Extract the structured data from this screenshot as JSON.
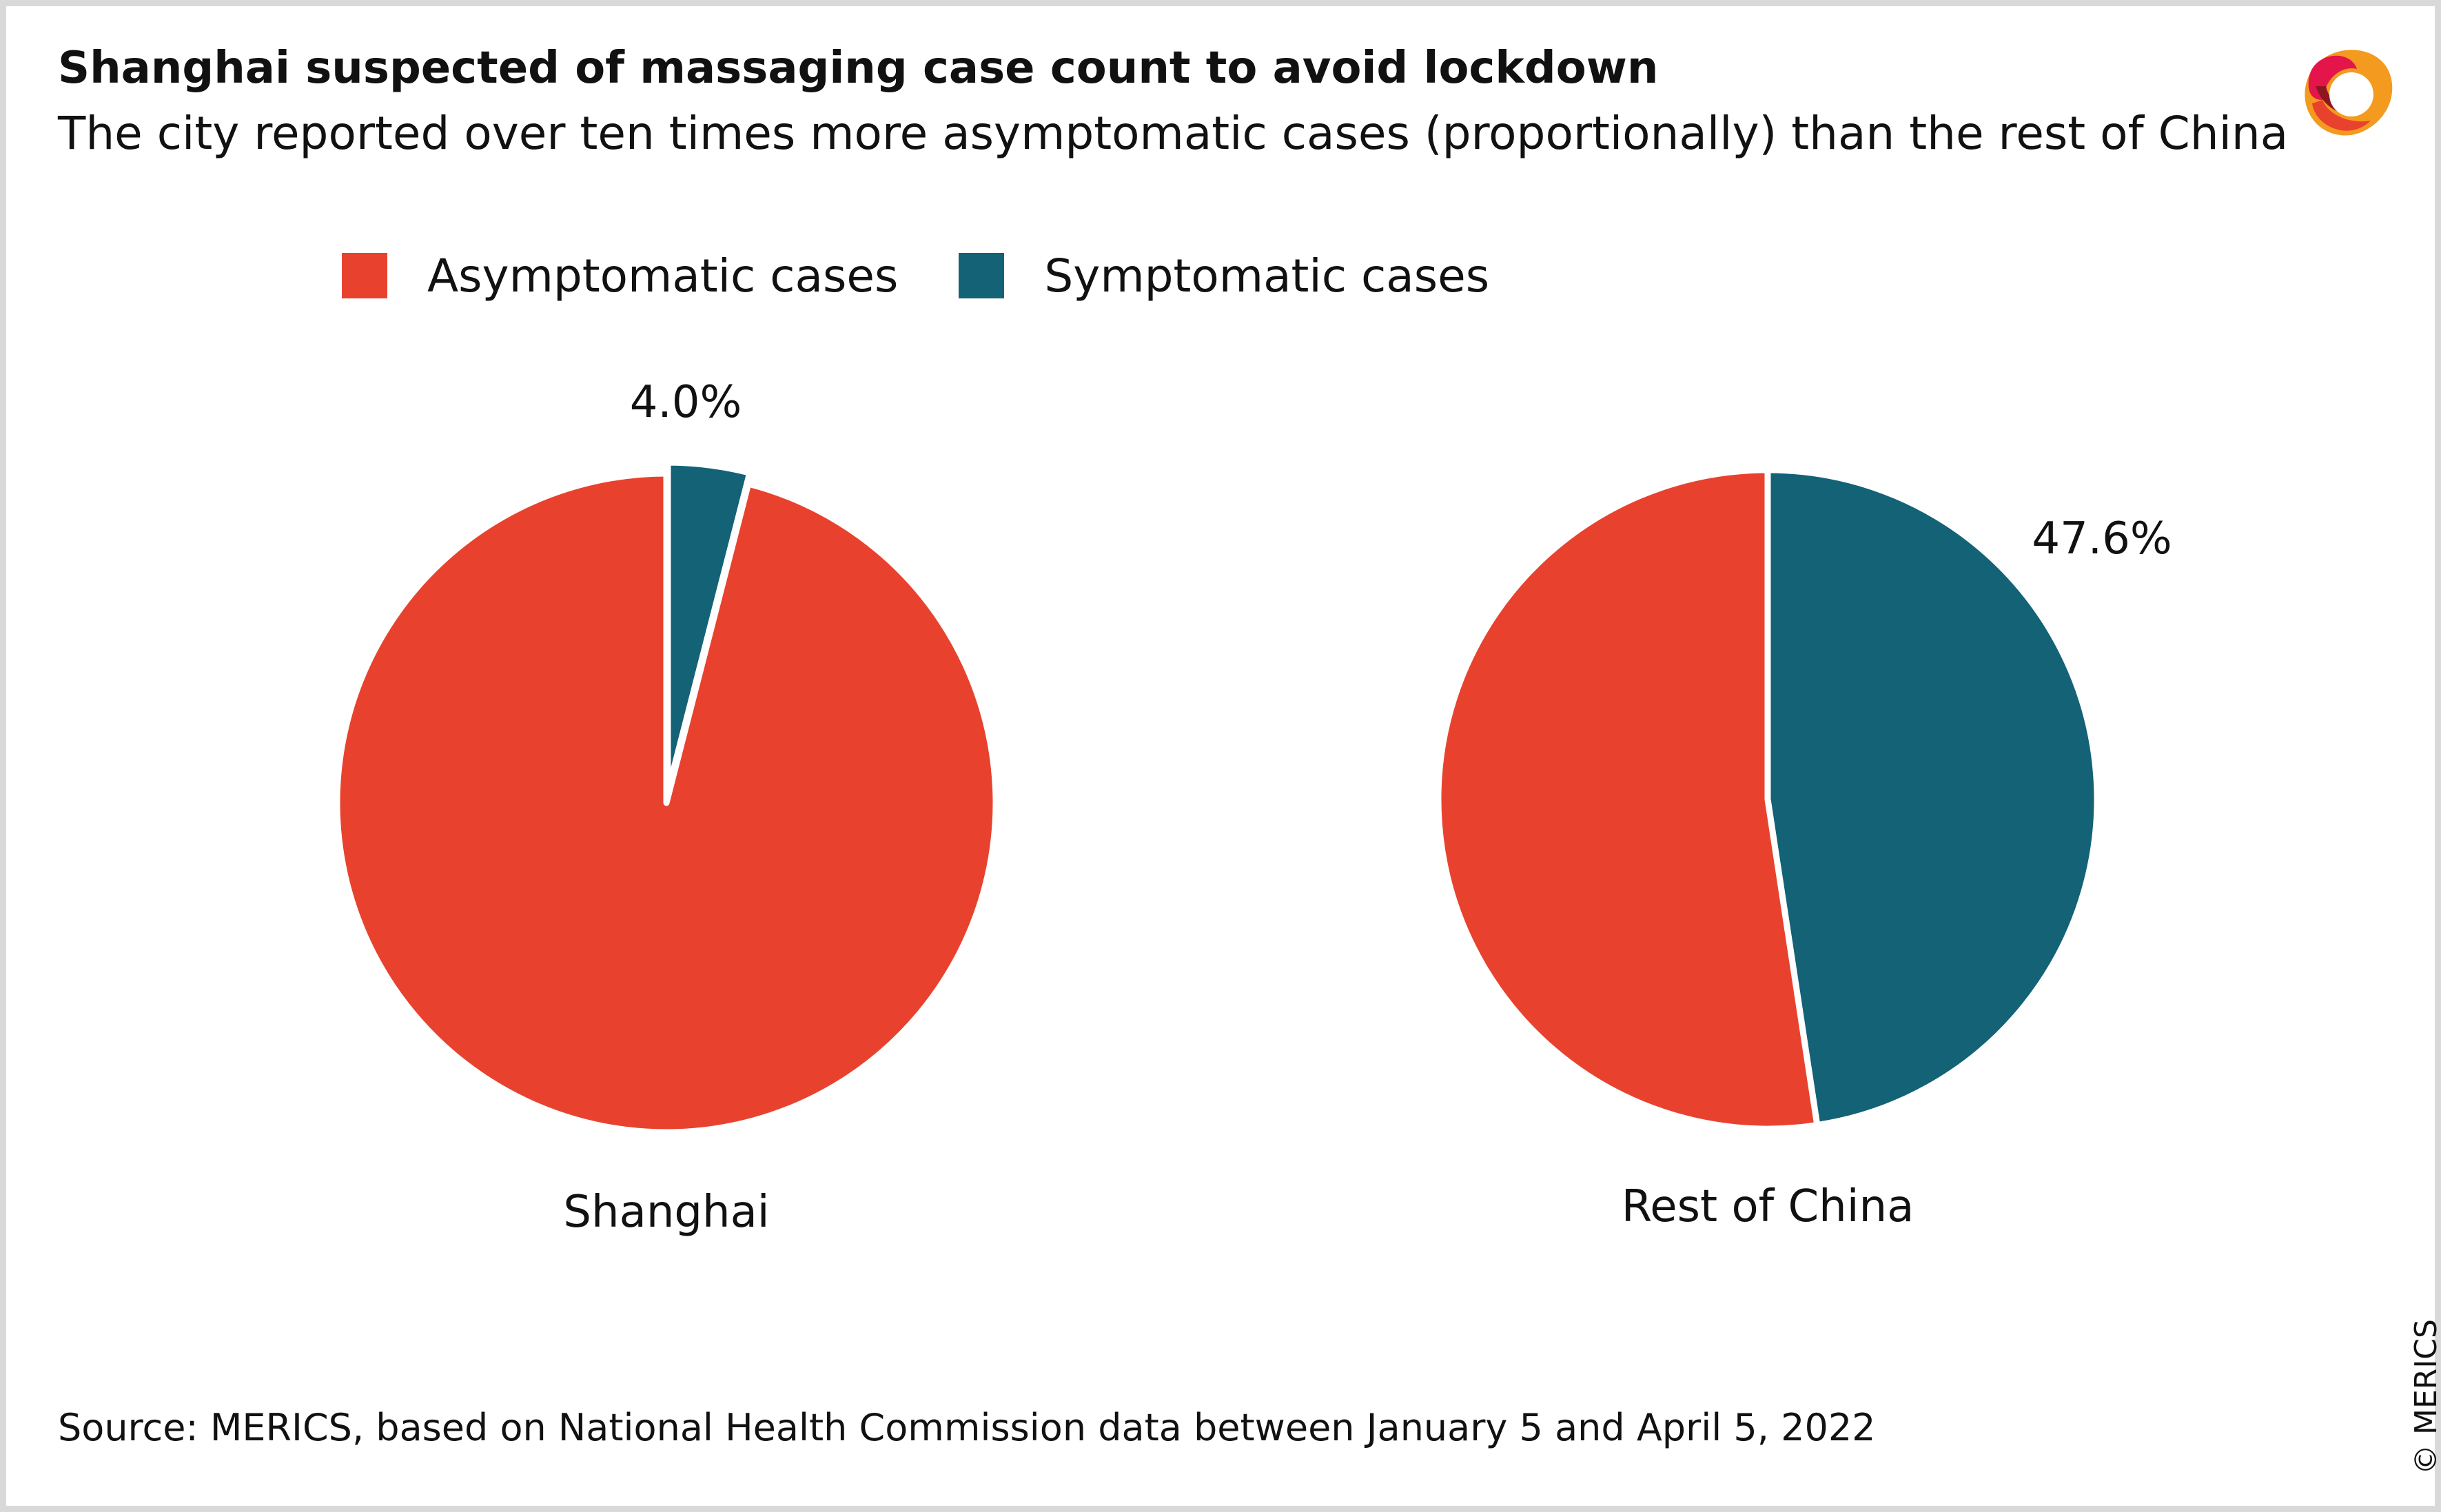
{
  "header": {
    "title": "Shanghai suspected of massaging case count to avoid lockdown",
    "subtitle": "The city reported over ten times more asymptomatic cases (proportionally) than the rest of China"
  },
  "legend": [
    {
      "label": "Asymptomatic cases",
      "color": "#e8422e"
    },
    {
      "label": "Symptomatic cases",
      "color": "#136276"
    }
  ],
  "footer": {
    "source": "Source: MERICS, based on National Health Commission data between January 5 and April 5, 2022",
    "copyright": "© MERICS"
  },
  "logo": {
    "icon": "merics-logo-icon"
  },
  "chart_data": [
    {
      "type": "pie",
      "title": "Shanghai",
      "slices": [
        {
          "name": "Symptomatic cases",
          "value": 4.0,
          "label": "4.0%",
          "color": "#136276",
          "exploded": true
        },
        {
          "name": "Asymptomatic cases",
          "value": 96.0,
          "label": "",
          "color": "#e8422e",
          "exploded": false
        }
      ]
    },
    {
      "type": "pie",
      "title": "Rest of China",
      "slices": [
        {
          "name": "Symptomatic cases",
          "value": 47.6,
          "label": "47.6%",
          "color": "#136276",
          "exploded": false
        },
        {
          "name": "Asymptomatic cases",
          "value": 52.4,
          "label": "",
          "color": "#e8422e",
          "exploded": false
        }
      ]
    }
  ]
}
